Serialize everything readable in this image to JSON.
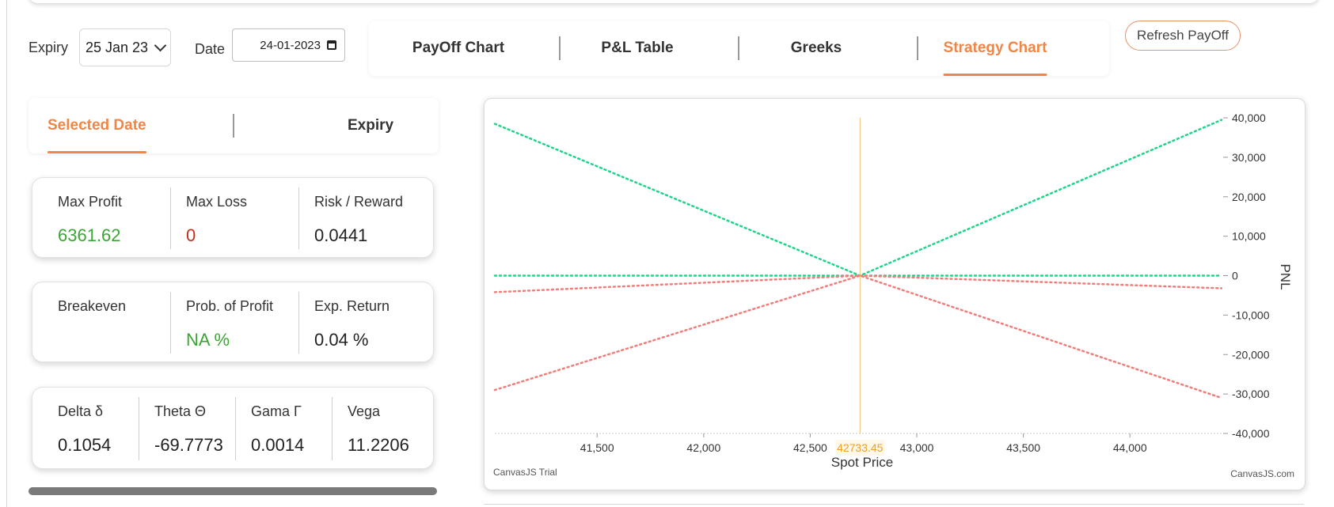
{
  "controls": {
    "expiry_label": "Expiry",
    "expiry_value": "25 Jan 23",
    "date_label": "Date",
    "date_value": "24-01-2023"
  },
  "tabs": [
    {
      "label": "PayOff Chart",
      "active": false
    },
    {
      "label": "P&L Table",
      "active": false
    },
    {
      "label": "Greeks",
      "active": false
    },
    {
      "label": "Strategy Chart",
      "active": true
    }
  ],
  "refresh_label": "Refresh PayOff",
  "subtabs": [
    {
      "label": "Selected Date",
      "active": true
    },
    {
      "label": "Expiry",
      "active": false
    }
  ],
  "stats_row1": [
    {
      "label": "Max Profit",
      "value": "6361.62"
    },
    {
      "label": "Max Loss",
      "value": "0"
    },
    {
      "label": "Risk / Reward",
      "value": "0.0441"
    }
  ],
  "stats_row2": [
    {
      "label": "Breakeven",
      "value": ""
    },
    {
      "label": "Prob. of Profit",
      "value": "NA %"
    },
    {
      "label": "Exp. Return",
      "value": "0.04 %"
    }
  ],
  "greeks": [
    {
      "label": "Delta δ",
      "value": "0.1054"
    },
    {
      "label": "Theta Θ",
      "value": "-69.7773"
    },
    {
      "label": "Gama Γ",
      "value": "0.0014"
    },
    {
      "label": "Vega",
      "value": "11.2206"
    }
  ],
  "colors": {
    "accent": "#ef8546",
    "profit": "#3aa534",
    "loss": "#cc2a1a",
    "series_green": "#1ed38a",
    "series_red": "#ef7d7a",
    "spot_line": "#f5c16b"
  },
  "chart_data": {
    "type": "line",
    "xlabel": "Spot Price",
    "ylabel": "PNL",
    "xlim": [
      41020,
      44430
    ],
    "ylim": [
      -40000,
      40000
    ],
    "x_ticks": [
      "41,500",
      "42,000",
      "42,500",
      "43,000",
      "43,500",
      "44,000"
    ],
    "y_ticks": [
      "40,000",
      "30,000",
      "20,000",
      "10,000",
      "0",
      "-10,000",
      "-20,000",
      "-30,000",
      "-40,000"
    ],
    "spot_marker": {
      "label": "42733.45",
      "x": 42733.45
    },
    "watermark_left": "CanvasJS Trial",
    "watermark_right": "CanvasJS.com",
    "series": [
      {
        "color": "green",
        "points": [
          [
            41020,
            38500
          ],
          [
            42733.45,
            0
          ],
          [
            44430,
            39500
          ]
        ]
      },
      {
        "color": "green",
        "points": [
          [
            41020,
            0
          ],
          [
            44430,
            0
          ]
        ]
      },
      {
        "color": "red",
        "points": [
          [
            41020,
            -4200
          ],
          [
            42733.45,
            0
          ],
          [
            44430,
            -3200
          ]
        ]
      },
      {
        "color": "red",
        "points": [
          [
            41020,
            -29000
          ],
          [
            42733.45,
            0
          ],
          [
            44430,
            -31000
          ]
        ]
      }
    ]
  }
}
